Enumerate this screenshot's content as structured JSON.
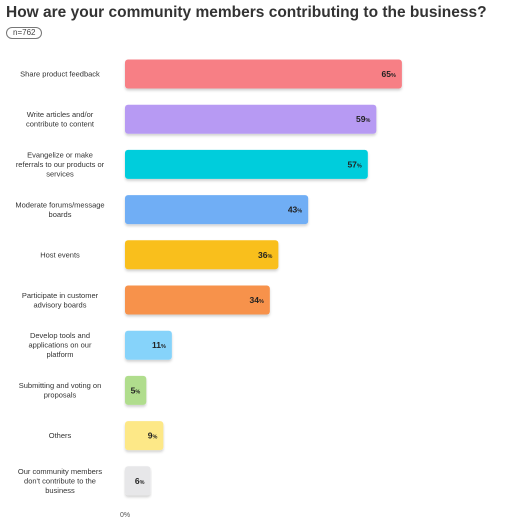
{
  "title": "How are your community members contributing to the business?",
  "sample": "n=762",
  "chart_data": {
    "type": "bar",
    "orientation": "horizontal",
    "categories": [
      [
        "Share product feedback"
      ],
      [
        "Write articles and/or",
        "contribute to content"
      ],
      [
        "Evangelize or make",
        "referrals to our products or",
        "services"
      ],
      [
        "Moderate forums/message",
        "boards"
      ],
      [
        "Host events"
      ],
      [
        "Participate in customer",
        "advisory boards"
      ],
      [
        "Develop tools and",
        "applications on our",
        "platform"
      ],
      [
        "Submitting and voting on",
        "proposals"
      ],
      [
        "Others"
      ],
      [
        "Our community members",
        "don't contribute to the",
        "business"
      ]
    ],
    "values": [
      65,
      59,
      57,
      43,
      36,
      34,
      11,
      5,
      9,
      6
    ],
    "value_suffix": "%",
    "colors": [
      "#f77f85",
      "#b79af3",
      "#00cddc",
      "#70aef5",
      "#f9bf1c",
      "#f7924b",
      "#86d3fa",
      "#b0dd8d",
      "#fde887",
      "#e7e7e9"
    ],
    "x_tick": "0%",
    "xlim": [
      0,
      100
    ],
    "grid": false
  }
}
